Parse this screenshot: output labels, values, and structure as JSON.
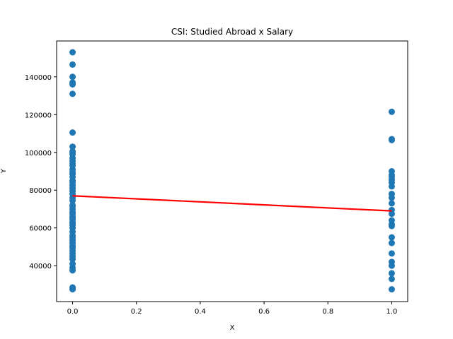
{
  "chart_data": {
    "type": "scatter",
    "title": "CSI: Studied Abroad x Salary",
    "xlabel": "X",
    "ylabel": "Y",
    "xlim": [
      -0.05,
      1.05
    ],
    "ylim": [
      21000,
      159000
    ],
    "xticks": [
      0.0,
      0.2,
      0.4,
      0.6,
      0.8,
      1.0
    ],
    "xtick_labels": [
      "0.0",
      "0.2",
      "0.4",
      "0.6",
      "0.8",
      "1.0"
    ],
    "yticks": [
      40000,
      60000,
      80000,
      100000,
      120000,
      140000
    ],
    "ytick_labels": [
      "40000",
      "60000",
      "80000",
      "100000",
      "120000",
      "140000"
    ],
    "grid": false,
    "series": [
      {
        "type": "scatter",
        "color": "#1f77b4",
        "x": [
          0,
          0,
          0,
          0,
          0,
          0,
          0,
          0,
          0,
          0,
          0,
          0,
          0,
          0,
          0,
          0,
          0,
          0,
          0,
          0,
          0,
          0,
          0,
          0,
          0,
          0,
          0,
          0,
          0,
          0,
          0,
          0,
          0,
          0,
          0,
          0,
          0,
          0,
          0,
          0,
          0,
          0,
          0,
          0,
          0,
          0,
          0,
          0,
          0,
          0,
          0,
          0,
          0,
          0,
          0,
          1,
          1,
          1,
          1,
          1,
          1,
          1,
          1,
          1,
          1,
          1,
          1,
          1,
          1,
          1,
          1,
          1,
          1,
          1,
          1,
          1,
          1,
          1,
          1,
          1
        ],
        "y": [
          153000,
          146500,
          140000,
          137000,
          136000,
          131000,
          110500,
          103000,
          100500,
          99000,
          97000,
          95500,
          94000,
          91000,
          89500,
          88500,
          87000,
          84000,
          82500,
          81000,
          79500,
          78000,
          76000,
          74500,
          71500,
          70000,
          68500,
          67500,
          66000,
          64500,
          63000,
          61500,
          60000,
          58000,
          56000,
          53500,
          52000,
          50500,
          49500,
          48000,
          46500,
          45000,
          43500,
          39000,
          37500,
          28500,
          27500,
          100000,
          93000,
          85000,
          72000,
          62500,
          55000,
          41000,
          65500,
          121500,
          107000,
          106500,
          90000,
          88000,
          87000,
          84000,
          82000,
          78000,
          76000,
          73000,
          69500,
          67500,
          64000,
          62000,
          55000,
          52000,
          46500,
          42000,
          40000,
          36000,
          33000,
          27500,
          61000,
          85500
        ]
      },
      {
        "type": "line",
        "color": "#ff0000",
        "x": [
          0,
          1
        ],
        "y": [
          77000,
          69000
        ]
      }
    ]
  }
}
